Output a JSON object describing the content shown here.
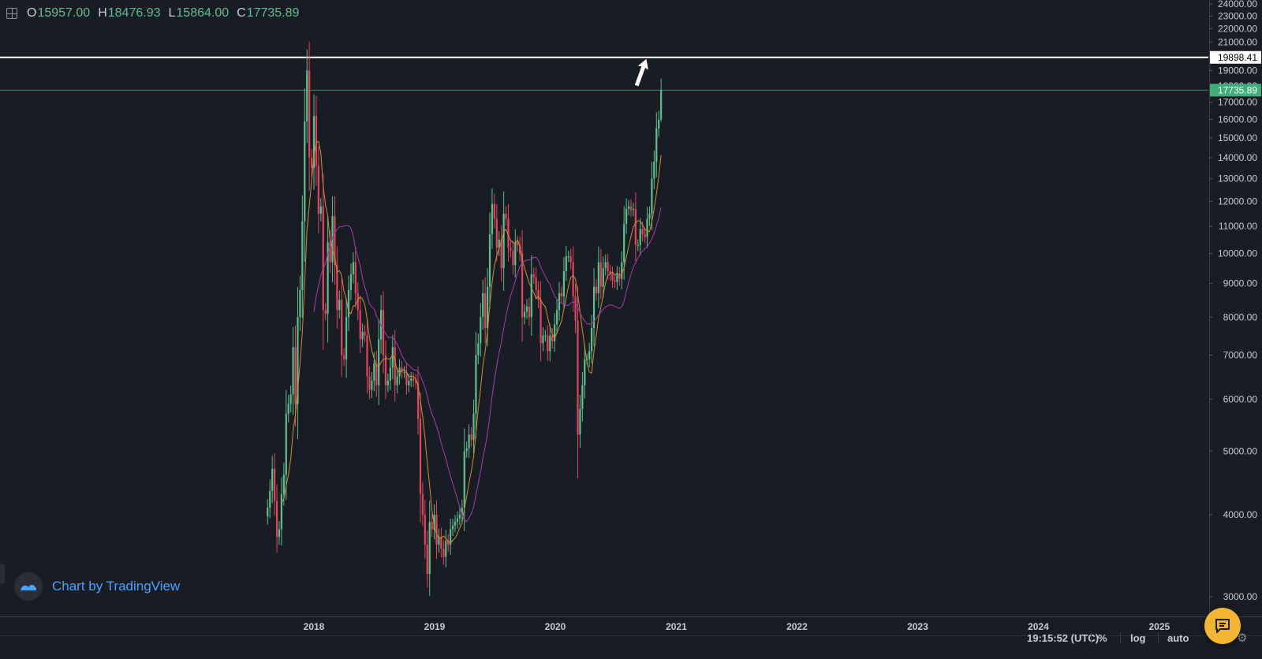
{
  "ohlc": {
    "o_label": "O",
    "o_value": "15957.00",
    "h_label": "H",
    "h_value": "18476.93",
    "l_label": "L",
    "l_value": "15864.00",
    "c_label": "C",
    "c_value": "17735.89"
  },
  "watermark": {
    "text": "Chart by TradingView"
  },
  "status_bar": {
    "time": "19:15:52 (UTC)",
    "percent_label": "%",
    "log_label": "log",
    "auto_label": "auto"
  },
  "colors": {
    "background": "#1a1c23",
    "up": "#5fbf8f",
    "down": "#e0475f",
    "ma_fast": "#c8913a",
    "ma_slow": "#a63db5",
    "resistance": "#ffffff",
    "axis_text": "#c8ccd4",
    "chat_button": "#f2b632",
    "watermark_text": "#4aa3ff"
  },
  "icons": [
    "grid-icon",
    "tradingview-logo-icon",
    "chat-icon",
    "gear-icon",
    "arrow-up-icon"
  ],
  "chart_data": {
    "type": "candlestick",
    "y_axis": {
      "scale": "log",
      "ticks": [
        "3000.00",
        "4000.00",
        "5000.00",
        "6000.00",
        "7000.00",
        "8000.00",
        "9000.00",
        "10000.00",
        "11000.00",
        "12000.00",
        "13000.00",
        "14000.00",
        "15000.00",
        "16000.00",
        "17000.00",
        "18000.00",
        "19000.00",
        "20000.00",
        "21000.00",
        "22000.00",
        "23000.00",
        "24000.00"
      ]
    },
    "x_axis": {
      "ticks": [
        "2018",
        "2019",
        "2020",
        "2021",
        "2022",
        "2023",
        "2024",
        "2025"
      ]
    },
    "horizontal_lines": [
      {
        "value": 19898.41,
        "label": "19898.41"
      },
      {
        "value": 17735.89,
        "label": "17735.89"
      }
    ],
    "series": [
      {
        "kind": "ohlc",
        "interval": "weekly",
        "points": [
          {
            "t": "2017-08-14",
            "c": 4100
          },
          {
            "t": "2017-08-21",
            "c": 4350
          },
          {
            "t": "2017-08-28",
            "c": 4700
          },
          {
            "t": "2017-09-04",
            "c": 4200
          },
          {
            "t": "2017-09-11",
            "c": 3700
          },
          {
            "t": "2017-09-18",
            "c": 3800
          },
          {
            "t": "2017-09-25",
            "c": 4300
          },
          {
            "t": "2017-10-02",
            "c": 4600
          },
          {
            "t": "2017-10-09",
            "c": 5700
          },
          {
            "t": "2017-10-16",
            "c": 5900
          },
          {
            "t": "2017-10-23",
            "c": 6100
          },
          {
            "t": "2017-10-30",
            "c": 7200
          },
          {
            "t": "2017-11-06",
            "c": 5900
          },
          {
            "t": "2017-11-13",
            "c": 8000
          },
          {
            "t": "2017-11-20",
            "c": 8800
          },
          {
            "t": "2017-11-27",
            "c": 11200
          },
          {
            "t": "2017-12-04",
            "c": 15900
          },
          {
            "t": "2017-12-11",
            "c": 19000
          },
          {
            "t": "2017-12-18",
            "c": 14000
          },
          {
            "t": "2017-12-25",
            "c": 13500
          },
          {
            "t": "2018-01-01",
            "c": 16200
          },
          {
            "t": "2018-01-08",
            "c": 13600
          },
          {
            "t": "2018-01-15",
            "c": 11500
          },
          {
            "t": "2018-01-22",
            "c": 11800
          },
          {
            "t": "2018-01-29",
            "c": 8200
          },
          {
            "t": "2018-02-05",
            "c": 8100
          },
          {
            "t": "2018-02-12",
            "c": 10400
          },
          {
            "t": "2018-02-19",
            "c": 9700
          },
          {
            "t": "2018-02-26",
            "c": 11400
          },
          {
            "t": "2018-03-05",
            "c": 9600
          },
          {
            "t": "2018-03-12",
            "c": 8200
          },
          {
            "t": "2018-03-19",
            "c": 8500
          },
          {
            "t": "2018-03-26",
            "c": 7000
          },
          {
            "t": "2018-04-02",
            "c": 6900
          },
          {
            "t": "2018-04-09",
            "c": 8000
          },
          {
            "t": "2018-04-16",
            "c": 8800
          },
          {
            "t": "2018-04-23",
            "c": 9300
          },
          {
            "t": "2018-04-30",
            "c": 9700
          },
          {
            "t": "2018-05-07",
            "c": 8700
          },
          {
            "t": "2018-05-14",
            "c": 8200
          },
          {
            "t": "2018-05-21",
            "c": 7400
          },
          {
            "t": "2018-05-28",
            "c": 7600
          },
          {
            "t": "2018-06-04",
            "c": 7500
          },
          {
            "t": "2018-06-11",
            "c": 6500
          },
          {
            "t": "2018-06-18",
            "c": 6200
          },
          {
            "t": "2018-06-25",
            "c": 6400
          },
          {
            "t": "2018-07-02",
            "c": 6800
          },
          {
            "t": "2018-07-09",
            "c": 6300
          },
          {
            "t": "2018-07-16",
            "c": 7400
          },
          {
            "t": "2018-07-23",
            "c": 8200
          },
          {
            "t": "2018-07-30",
            "c": 7000
          },
          {
            "t": "2018-08-06",
            "c": 6300
          },
          {
            "t": "2018-08-13",
            "c": 6400
          },
          {
            "t": "2018-08-20",
            "c": 6700
          },
          {
            "t": "2018-08-27",
            "c": 7200
          },
          {
            "t": "2018-09-03",
            "c": 6300
          },
          {
            "t": "2018-09-10",
            "c": 6500
          },
          {
            "t": "2018-09-17",
            "c": 6700
          },
          {
            "t": "2018-09-24",
            "c": 6600
          },
          {
            "t": "2018-10-01",
            "c": 6600
          },
          {
            "t": "2018-10-08",
            "c": 6300
          },
          {
            "t": "2018-10-15",
            "c": 6400
          },
          {
            "t": "2018-10-22",
            "c": 6450
          },
          {
            "t": "2018-10-29",
            "c": 6400
          },
          {
            "t": "2018-11-05",
            "c": 6350
          },
          {
            "t": "2018-11-12",
            "c": 5600
          },
          {
            "t": "2018-11-19",
            "c": 4300
          },
          {
            "t": "2018-11-26",
            "c": 4000
          },
          {
            "t": "2018-12-03",
            "c": 3600
          },
          {
            "t": "2018-12-10",
            "c": 3250
          },
          {
            "t": "2018-12-17",
            "c": 3900
          },
          {
            "t": "2018-12-24",
            "c": 3800
          },
          {
            "t": "2018-12-31",
            "c": 4000
          },
          {
            "t": "2019-01-07",
            "c": 3600
          },
          {
            "t": "2019-01-14",
            "c": 3700
          },
          {
            "t": "2019-01-21",
            "c": 3550
          },
          {
            "t": "2019-01-28",
            "c": 3450
          },
          {
            "t": "2019-02-04",
            "c": 3650
          },
          {
            "t": "2019-02-11",
            "c": 3600
          },
          {
            "t": "2019-02-18",
            "c": 3800
          },
          {
            "t": "2019-02-25",
            "c": 3850
          },
          {
            "t": "2019-03-04",
            "c": 3900
          },
          {
            "t": "2019-03-11",
            "c": 3950
          },
          {
            "t": "2019-03-18",
            "c": 4000
          },
          {
            "t": "2019-03-25",
            "c": 4100
          },
          {
            "t": "2019-04-01",
            "c": 5000
          },
          {
            "t": "2019-04-08",
            "c": 5050
          },
          {
            "t": "2019-04-15",
            "c": 5300
          },
          {
            "t": "2019-04-22",
            "c": 5200
          },
          {
            "t": "2019-04-29",
            "c": 5700
          },
          {
            "t": "2019-05-06",
            "c": 7000
          },
          {
            "t": "2019-05-13",
            "c": 7300
          },
          {
            "t": "2019-05-20",
            "c": 8000
          },
          {
            "t": "2019-05-27",
            "c": 8700
          },
          {
            "t": "2019-06-03",
            "c": 7700
          },
          {
            "t": "2019-06-10",
            "c": 8900
          },
          {
            "t": "2019-06-17",
            "c": 10700
          },
          {
            "t": "2019-06-24",
            "c": 11900
          },
          {
            "t": "2019-07-01",
            "c": 11300
          },
          {
            "t": "2019-07-08",
            "c": 10200
          },
          {
            "t": "2019-07-15",
            "c": 10500
          },
          {
            "t": "2019-07-22",
            "c": 9500
          },
          {
            "t": "2019-07-29",
            "c": 11500
          },
          {
            "t": "2019-08-05",
            "c": 11300
          },
          {
            "t": "2019-08-12",
            "c": 10200
          },
          {
            "t": "2019-08-19",
            "c": 10100
          },
          {
            "t": "2019-08-26",
            "c": 9600
          },
          {
            "t": "2019-09-02",
            "c": 10400
          },
          {
            "t": "2019-09-09",
            "c": 10300
          },
          {
            "t": "2019-09-16",
            "c": 10000
          },
          {
            "t": "2019-09-23",
            "c": 8000
          },
          {
            "t": "2019-09-30",
            "c": 8150
          },
          {
            "t": "2019-10-07",
            "c": 8300
          },
          {
            "t": "2019-10-14",
            "c": 8000
          },
          {
            "t": "2019-10-21",
            "c": 9300
          },
          {
            "t": "2019-10-28",
            "c": 9200
          },
          {
            "t": "2019-11-04",
            "c": 8800
          },
          {
            "t": "2019-11-11",
            "c": 8500
          },
          {
            "t": "2019-11-18",
            "c": 7300
          },
          {
            "t": "2019-11-25",
            "c": 7500
          },
          {
            "t": "2019-12-02",
            "c": 7500
          },
          {
            "t": "2019-12-09",
            "c": 7100
          },
          {
            "t": "2019-12-16",
            "c": 7500
          },
          {
            "t": "2019-12-23",
            "c": 7350
          },
          {
            "t": "2019-12-30",
            "c": 7800
          },
          {
            "t": "2020-01-06",
            "c": 8200
          },
          {
            "t": "2020-01-13",
            "c": 8700
          },
          {
            "t": "2020-01-20",
            "c": 8600
          },
          {
            "t": "2020-01-27",
            "c": 9400
          },
          {
            "t": "2020-02-03",
            "c": 9900
          },
          {
            "t": "2020-02-10",
            "c": 9900
          },
          {
            "t": "2020-02-17",
            "c": 9700
          },
          {
            "t": "2020-02-24",
            "c": 8600
          },
          {
            "t": "2020-03-02",
            "c": 7900
          },
          {
            "t": "2020-03-09",
            "c": 5300
          },
          {
            "t": "2020-03-16",
            "c": 5800
          },
          {
            "t": "2020-03-23",
            "c": 6300
          },
          {
            "t": "2020-03-30",
            "c": 6900
          },
          {
            "t": "2020-04-06",
            "c": 6900
          },
          {
            "t": "2020-04-13",
            "c": 7100
          },
          {
            "t": "2020-04-20",
            "c": 7700
          },
          {
            "t": "2020-04-27",
            "c": 8900
          },
          {
            "t": "2020-05-04",
            "c": 8700
          },
          {
            "t": "2020-05-11",
            "c": 9700
          },
          {
            "t": "2020-05-18",
            "c": 8900
          },
          {
            "t": "2020-05-25",
            "c": 9500
          },
          {
            "t": "2020-06-01",
            "c": 9700
          },
          {
            "t": "2020-06-08",
            "c": 9400
          },
          {
            "t": "2020-06-15",
            "c": 9300
          },
          {
            "t": "2020-06-22",
            "c": 9100
          },
          {
            "t": "2020-06-29",
            "c": 9050
          },
          {
            "t": "2020-07-06",
            "c": 9300
          },
          {
            "t": "2020-07-13",
            "c": 9150
          },
          {
            "t": "2020-07-20",
            "c": 9700
          },
          {
            "t": "2020-07-27",
            "c": 11100
          },
          {
            "t": "2020-08-03",
            "c": 11700
          },
          {
            "t": "2020-08-10",
            "c": 11800
          },
          {
            "t": "2020-08-17",
            "c": 11650
          },
          {
            "t": "2020-08-24",
            "c": 11700
          },
          {
            "t": "2020-08-31",
            "c": 10300
          },
          {
            "t": "2020-09-07",
            "c": 10300
          },
          {
            "t": "2020-09-14",
            "c": 10900
          },
          {
            "t": "2020-09-21",
            "c": 10700
          },
          {
            "t": "2020-09-28",
            "c": 10600
          },
          {
            "t": "2020-10-05",
            "c": 11300
          },
          {
            "t": "2020-10-12",
            "c": 11500
          },
          {
            "t": "2020-10-19",
            "c": 13000
          },
          {
            "t": "2020-10-26",
            "c": 13800
          },
          {
            "t": "2020-11-02",
            "c": 15500
          },
          {
            "t": "2020-11-09",
            "c": 16000
          },
          {
            "t": "2020-11-16",
            "c": 17735.89
          }
        ]
      },
      {
        "kind": "moving_average",
        "color_key": "ma_fast"
      },
      {
        "kind": "moving_average",
        "color_key": "ma_slow"
      }
    ],
    "current": {
      "open": 15957.0,
      "high": 18476.93,
      "low": 15864.0,
      "close": 17735.89
    }
  }
}
